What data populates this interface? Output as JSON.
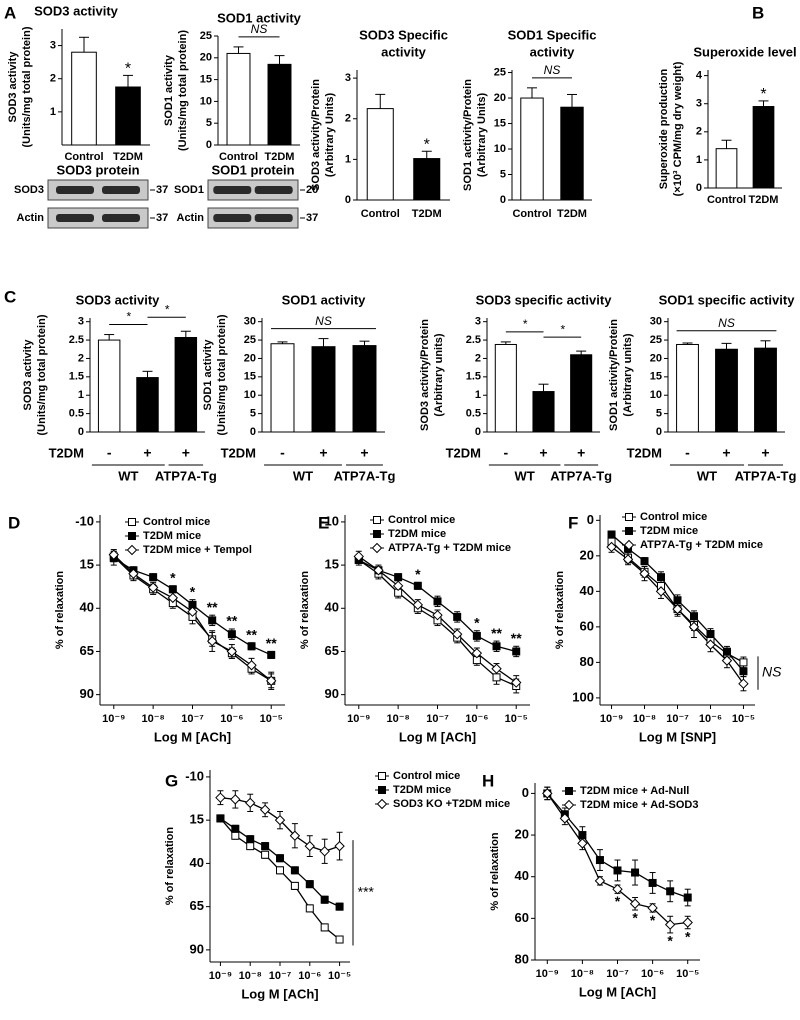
{
  "panel_labels": [
    "A",
    "B",
    "C",
    "D",
    "E",
    "F",
    "G",
    "H"
  ],
  "blots": [
    {
      "title": "SOD3 protein",
      "rows": [
        "SOD3",
        "Actin"
      ],
      "markers": [
        "37",
        "37"
      ]
    },
    {
      "title": "SOD1 protein",
      "rows": [
        "SOD1",
        "Actin"
      ],
      "markers": [
        "20",
        "37"
      ]
    }
  ],
  "chart_data": [
    {
      "type": "bar",
      "title": [
        "SOD3 activity"
      ],
      "ylabel": [
        "SOD3 activity",
        "(Units/mg total protein)"
      ],
      "categories": [
        "Control",
        "T2DM"
      ],
      "values": [
        2.8,
        1.75
      ],
      "errors": [
        0.45,
        0.35
      ],
      "colors": [
        "#ffffff",
        "#000000"
      ],
      "ylim": [
        0,
        3.5
      ],
      "yticks": [
        1,
        2,
        3
      ],
      "significance": [
        null,
        "*"
      ]
    },
    {
      "type": "bar",
      "title": [
        "SOD1 activity"
      ],
      "ylabel": [
        "SOD1 activity",
        "(Units/mg total protein)"
      ],
      "categories": [
        "Control",
        "T2DM"
      ],
      "values": [
        21,
        18.5
      ],
      "errors": [
        1.5,
        2
      ],
      "colors": [
        "#ffffff",
        "#000000"
      ],
      "ylim": [
        0,
        25
      ],
      "yticks": [
        0,
        5,
        10,
        15,
        20,
        25
      ],
      "brackets": [
        {
          "text": "NS",
          "from": 0,
          "to": 1
        }
      ]
    },
    {
      "type": "bar",
      "title": [
        "SOD3 Specific",
        "activity"
      ],
      "ylabel": [
        "SOD3 activity/Protein",
        "(Arbitrary Units)"
      ],
      "categories": [
        "Control",
        "T2DM"
      ],
      "values": [
        2.25,
        1.02
      ],
      "errors": [
        0.35,
        0.18
      ],
      "colors": [
        "#ffffff",
        "#000000"
      ],
      "ylim": [
        0,
        3.2
      ],
      "yticks": [
        0,
        1,
        2,
        3
      ],
      "significance": [
        null,
        "*"
      ]
    },
    {
      "type": "bar",
      "title": [
        "SOD1 Specific",
        "activity"
      ],
      "ylabel": [
        "SOD1 activity/Protein",
        "(Arbitrary Units)"
      ],
      "categories": [
        "Control",
        "T2DM"
      ],
      "values": [
        20,
        18.2
      ],
      "errors": [
        2,
        2.5
      ],
      "colors": [
        "#ffffff",
        "#000000"
      ],
      "ylim": [
        0,
        25.5
      ],
      "yticks": [
        0,
        5,
        10,
        15,
        20,
        25
      ],
      "brackets": [
        {
          "text": "NS",
          "from": 0,
          "to": 1
        }
      ]
    },
    {
      "type": "bar",
      "title": [
        "Superoxide level"
      ],
      "ylabel": [
        "Superoxide production",
        "(×10³ CPM/mg dry weight)"
      ],
      "categories": [
        "Control",
        "T2DM"
      ],
      "values": [
        1.4,
        2.9
      ],
      "errors": [
        0.3,
        0.2
      ],
      "colors": [
        "#ffffff",
        "#000000"
      ],
      "ylim": [
        0,
        4.2
      ],
      "yticks": [
        0,
        1,
        2,
        3,
        4
      ],
      "significance": [
        null,
        "*"
      ]
    },
    {
      "type": "bar",
      "title": [
        "SOD3 activity"
      ],
      "ylabel": [
        "SOD3 activity",
        "(Units/mg total protein)"
      ],
      "categories": [
        "-",
        "+",
        "+"
      ],
      "row_label": "T2DM",
      "groups": [
        {
          "name": "WT",
          "categories": [
            0,
            1
          ]
        },
        {
          "name": "ATP7A-Tg",
          "categories": [
            2
          ]
        }
      ],
      "values": [
        2.5,
        1.48,
        2.57
      ],
      "errors": [
        0.15,
        0.17,
        0.17
      ],
      "colors": [
        "#ffffff",
        "#000000",
        "#000000"
      ],
      "ylim": [
        0,
        3.1
      ],
      "yticks": [
        0,
        0.5,
        1,
        1.5,
        2,
        2.5,
        3
      ],
      "brackets": [
        {
          "text": "*",
          "from": 0,
          "to": 1
        },
        {
          "text": "*",
          "from": 1,
          "to": 2
        }
      ]
    },
    {
      "type": "bar",
      "title": [
        "SOD1 activity"
      ],
      "ylabel": [
        "SOD1 activity",
        "(Units/mg total protein)"
      ],
      "categories": [
        "-",
        "+",
        "+"
      ],
      "row_label": "T2DM",
      "groups": [
        {
          "name": "WT",
          "categories": [
            0,
            1
          ]
        },
        {
          "name": "ATP7A-Tg",
          "categories": [
            2
          ]
        }
      ],
      "values": [
        24,
        23.2,
        23.5
      ],
      "errors": [
        0.5,
        2.2,
        1.2
      ],
      "colors": [
        "#ffffff",
        "#000000",
        "#000000"
      ],
      "ylim": [
        0,
        31
      ],
      "yticks": [
        0,
        5,
        10,
        15,
        20,
        25,
        30
      ],
      "brackets": [
        {
          "text": "NS",
          "from": 0,
          "to": 2
        }
      ]
    },
    {
      "type": "bar",
      "title": [
        "SOD3 specific activity"
      ],
      "ylabel": [
        "SOD3 activity/Protein",
        "(Arbitrary units)"
      ],
      "categories": [
        "-",
        "+",
        "+"
      ],
      "row_label": "T2DM",
      "groups": [
        {
          "name": "WT",
          "categories": [
            0,
            1
          ]
        },
        {
          "name": "ATP7A-Tg",
          "categories": [
            2
          ]
        }
      ],
      "values": [
        2.38,
        1.1,
        2.1
      ],
      "errors": [
        0.07,
        0.2,
        0.1
      ],
      "colors": [
        "#ffffff",
        "#000000",
        "#000000"
      ],
      "ylim": [
        0,
        3.1
      ],
      "yticks": [
        0,
        0.5,
        1,
        1.5,
        2,
        2.5,
        3
      ],
      "brackets": [
        {
          "text": "*",
          "from": 0,
          "to": 1
        },
        {
          "text": "*",
          "from": 1,
          "to": 2
        }
      ]
    },
    {
      "type": "bar",
      "title": [
        "SOD1 specific activity"
      ],
      "ylabel": [
        "SOD1 activity/Protein",
        "(Arbitrary units)"
      ],
      "categories": [
        "-",
        "+",
        "+"
      ],
      "row_label": "T2DM",
      "groups": [
        {
          "name": "WT",
          "categories": [
            0,
            1
          ]
        },
        {
          "name": "ATP7A-Tg",
          "categories": [
            2
          ]
        }
      ],
      "values": [
        23.8,
        22.5,
        22.8
      ],
      "errors": [
        0.4,
        1.6,
        2
      ],
      "colors": [
        "#ffffff",
        "#000000",
        "#000000"
      ],
      "ylim": [
        0,
        31
      ],
      "yticks": [
        0,
        5,
        10,
        15,
        20,
        25,
        30
      ],
      "brackets": [
        {
          "text": "NS",
          "from": 0,
          "to": 2
        }
      ]
    },
    {
      "type": "line",
      "xlabel": "Log M [ACh]",
      "ylabel": "% of relaxation",
      "y_inverted": true,
      "legend": "upper left",
      "x": [
        -9,
        -8.5,
        -8,
        -7.5,
        -7,
        -6.5,
        -6,
        -5.5,
        -5
      ],
      "xlim": [
        -9.35,
        -4.65
      ],
      "xticks": [
        {
          "value": -9,
          "label": "10⁻⁹"
        },
        {
          "value": -8,
          "label": "10⁻⁸"
        },
        {
          "value": -7,
          "label": "10⁻⁷"
        },
        {
          "value": -6,
          "label": "10⁻⁶"
        },
        {
          "value": -5,
          "label": "10⁻⁵"
        }
      ],
      "ylim": [
        -14,
        96
      ],
      "yticks": [
        -10,
        15,
        40,
        65,
        90
      ],
      "series": [
        {
          "name": "Control mice",
          "marker": "square-open",
          "color": "#000000",
          "values": [
            10,
            21,
            29,
            37,
            45,
            58,
            66,
            75,
            82
          ],
          "errors": [
            3,
            3,
            3,
            3,
            4,
            4,
            3,
            3,
            4
          ]
        },
        {
          "name": "T2DM mice",
          "marker": "square-filled",
          "color": "#000000",
          "values": [
            11,
            18,
            22,
            29,
            38,
            47,
            55,
            62,
            67
          ],
          "errors": [
            4,
            2,
            2,
            2,
            3,
            3,
            3,
            2,
            2
          ],
          "significance": [
            null,
            null,
            null,
            "*",
            "*",
            "**",
            "**",
            "**",
            "**"
          ]
        },
        {
          "name": "T2DM mice + Tempol",
          "marker": "diamond-open",
          "color": "#000000",
          "values": [
            9,
            20,
            28,
            34,
            42,
            59,
            65,
            73,
            82
          ],
          "errors": [
            3,
            3,
            3,
            4,
            4,
            6,
            4,
            4,
            5
          ]
        }
      ]
    },
    {
      "type": "line",
      "xlabel": "Log M [ACh]",
      "ylabel": "% of relaxation",
      "y_inverted": true,
      "legend": "upper left",
      "x": [
        -9,
        -8.5,
        -8,
        -7.5,
        -7,
        -6.5,
        -6,
        -5.5,
        -5
      ],
      "xlim": [
        -9.35,
        -4.65
      ],
      "xticks": [
        {
          "value": -9,
          "label": "10⁻⁹"
        },
        {
          "value": -8,
          "label": "10⁻⁸"
        },
        {
          "value": -7,
          "label": "10⁻⁷"
        },
        {
          "value": -6,
          "label": "10⁻⁶"
        },
        {
          "value": -5,
          "label": "10⁻⁵"
        }
      ],
      "ylim": [
        -14,
        96
      ],
      "yticks": [
        -10,
        15,
        40,
        65,
        90
      ],
      "series": [
        {
          "name": "Control mice",
          "marker": "square-open",
          "color": "#000000",
          "values": [
            12,
            20,
            31,
            40,
            47,
            57,
            70,
            80,
            85
          ],
          "errors": [
            3,
            3,
            3,
            3,
            3,
            3,
            3,
            4,
            4
          ]
        },
        {
          "name": "T2DM mice",
          "marker": "square-filled",
          "color": "#000000",
          "values": [
            12,
            18,
            22,
            27,
            36,
            45,
            56,
            62,
            65
          ],
          "errors": [
            2,
            2,
            2,
            2,
            3,
            3,
            3,
            3,
            3
          ],
          "significance": [
            null,
            null,
            null,
            "*",
            null,
            null,
            "*",
            "**",
            "**"
          ]
        },
        {
          "name": "ATP7A-Tg + T2DM mice",
          "marker": "diamond-open",
          "color": "#000000",
          "values": [
            10,
            18,
            27,
            38,
            44,
            55,
            66,
            75,
            83
          ],
          "errors": [
            3,
            3,
            3,
            3,
            3,
            3,
            3,
            3,
            4
          ]
        }
      ]
    },
    {
      "type": "line",
      "xlabel": "Log M [SNP]",
      "ylabel": "% of relaxation",
      "y_inverted": true,
      "legend": "upper left",
      "bracket_right": {
        "text": "NS"
      },
      "x": [
        -9,
        -8.5,
        -8,
        -7.5,
        -7,
        -6.5,
        -6,
        -5.5,
        -5
      ],
      "xlim": [
        -9.35,
        -4.65
      ],
      "xticks": [
        {
          "value": -9,
          "label": "10⁻⁹"
        },
        {
          "value": -8,
          "label": "10⁻⁸"
        },
        {
          "value": -7,
          "label": "10⁻⁷"
        },
        {
          "value": -6,
          "label": "10⁻⁶"
        },
        {
          "value": -5,
          "label": "10⁻⁵"
        }
      ],
      "ylim": [
        -3,
        104
      ],
      "yticks": [
        0,
        20,
        40,
        60,
        80,
        100
      ],
      "series": [
        {
          "name": "Control mice",
          "marker": "square-open",
          "color": "#000000",
          "values": [
            12,
            21,
            29,
            37,
            50,
            59,
            68,
            75,
            80
          ],
          "errors": [
            3,
            3,
            3,
            3,
            3,
            3,
            3,
            3,
            3
          ]
        },
        {
          "name": "T2DM mice",
          "marker": "square-filled",
          "color": "#000000",
          "values": [
            8,
            16,
            23,
            32,
            45,
            54,
            64,
            74,
            85
          ],
          "errors": [
            2,
            2,
            2,
            3,
            3,
            3,
            3,
            3,
            3
          ]
        },
        {
          "name": "ATP7A-Tg + T2DM mice",
          "marker": "diamond-open",
          "color": "#000000",
          "values": [
            15,
            22,
            30,
            40,
            50,
            60,
            70,
            79,
            92
          ],
          "errors": [
            3,
            3,
            4,
            4,
            4,
            6,
            4,
            4,
            4
          ]
        }
      ]
    },
    {
      "type": "line",
      "xlabel": "Log M [ACh]",
      "ylabel": "% of relaxation",
      "y_inverted": true,
      "legend": "upper right",
      "bracket_right": {
        "text": "***"
      },
      "x": [
        -9,
        -8.5,
        -8,
        -7.5,
        -7,
        -6.5,
        -6,
        -5.5,
        -5
      ],
      "xlim": [
        -9.35,
        -4.65
      ],
      "xticks": [
        {
          "value": -9,
          "label": "10⁻⁹"
        },
        {
          "value": -8,
          "label": "10⁻⁸"
        },
        {
          "value": -7,
          "label": "10⁻⁷"
        },
        {
          "value": -6,
          "label": "10⁻⁶"
        },
        {
          "value": -5,
          "label": "10⁻⁵"
        }
      ],
      "ylim": [
        -14,
        97
      ],
      "yticks": [
        -10,
        15,
        40,
        65,
        90
      ],
      "series": [
        {
          "name": "Control mice",
          "marker": "square-open",
          "color": "#000000",
          "values": [
            14,
            24,
            30,
            35,
            44,
            53,
            66,
            77,
            84
          ],
          "errors": [
            2,
            2,
            2,
            2,
            2,
            2,
            2,
            2,
            2
          ]
        },
        {
          "name": "T2DM mice",
          "marker": "square-filled",
          "color": "#000000",
          "values": [
            14,
            20,
            26,
            30,
            37,
            44,
            52,
            61,
            65
          ],
          "errors": [
            2,
            2,
            2,
            2,
            2,
            2,
            2,
            2,
            2
          ]
        },
        {
          "name": "SOD3 KO +T2DM mice",
          "marker": "diamond-open",
          "color": "#000000",
          "values": [
            2,
            3,
            5,
            9,
            15,
            24,
            30,
            33,
            30
          ],
          "errors": [
            4,
            5,
            5,
            4,
            5,
            7,
            6,
            7,
            8
          ]
        }
      ]
    },
    {
      "type": "line",
      "xlabel": "Log M [ACh]",
      "ylabel": "% of relaxation",
      "y_inverted": true,
      "legend": "upper left",
      "x": [
        -9,
        -8.5,
        -8,
        -7.5,
        -7,
        -6.5,
        -6,
        -5.5,
        -5
      ],
      "xlim": [
        -9.35,
        -4.65
      ],
      "xticks": [
        {
          "value": -9,
          "label": "10⁻⁹"
        },
        {
          "value": -8,
          "label": "10⁻⁸"
        },
        {
          "value": -7,
          "label": "10⁻⁷"
        },
        {
          "value": -6,
          "label": "10⁻⁶"
        },
        {
          "value": -5,
          "label": "10⁻⁵"
        }
      ],
      "ylim": [
        -5,
        80
      ],
      "yticks": [
        0,
        20,
        40,
        60,
        80
      ],
      "series": [
        {
          "name": "T2DM mice + Ad-Null",
          "marker": "square-filled",
          "color": "#000000",
          "values": [
            0,
            10,
            20,
            32,
            37,
            38,
            43,
            47,
            50
          ],
          "errors": [
            3,
            3,
            4,
            5,
            5,
            6,
            5,
            5,
            4
          ]
        },
        {
          "name": "T2DM mice + Ad-SOD3",
          "marker": "diamond-open",
          "color": "#000000",
          "values": [
            0,
            12,
            24,
            42,
            46,
            53,
            55,
            63,
            62
          ],
          "errors": [
            3,
            3,
            3,
            2,
            2,
            3,
            2,
            4,
            3
          ],
          "significance": [
            null,
            null,
            null,
            null,
            "*",
            "*",
            "*",
            "*",
            "*"
          ]
        }
      ]
    }
  ]
}
